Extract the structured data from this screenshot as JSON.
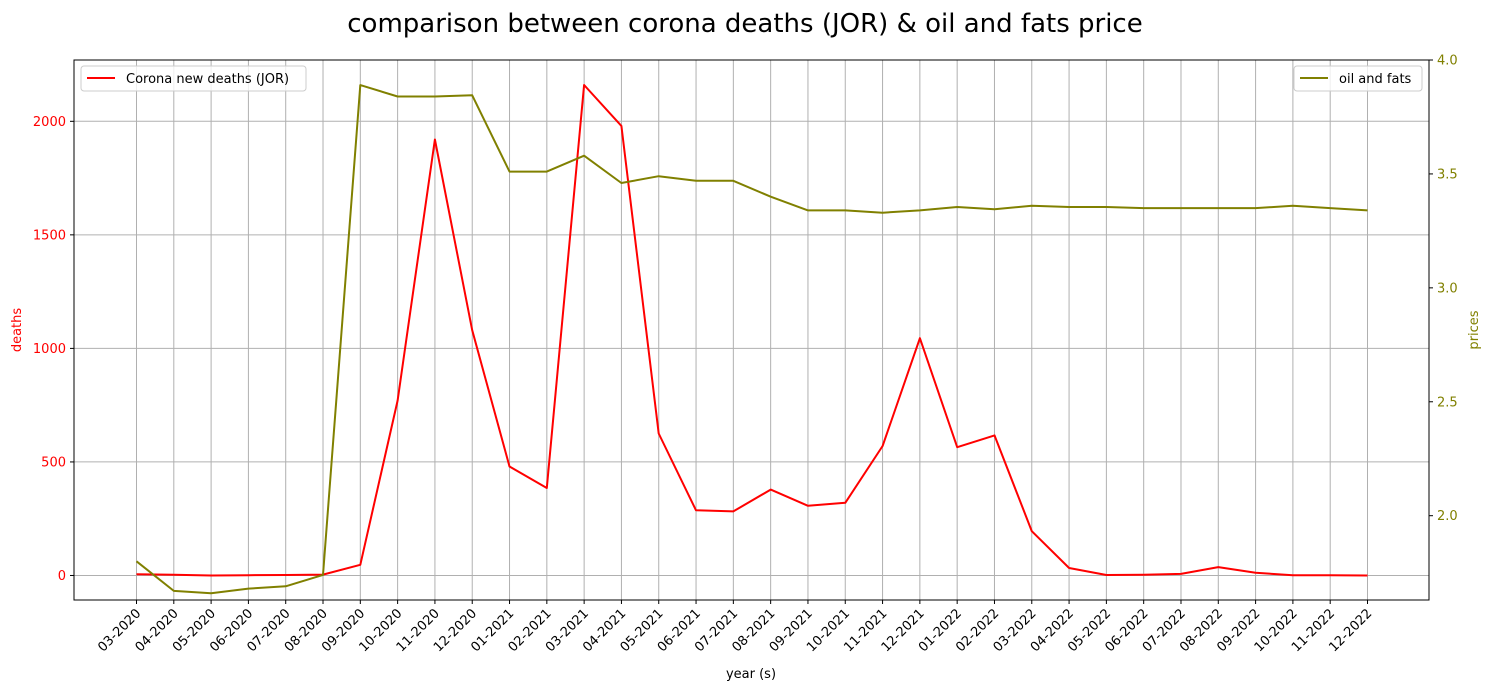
{
  "chart_data": {
    "type": "line",
    "title": "comparison between corona deaths (JOR) & oil and fats price",
    "xlabel": "year (s)",
    "categories": [
      "03-2020",
      "04-2020",
      "05-2020",
      "06-2020",
      "07-2020",
      "08-2020",
      "09-2020",
      "10-2020",
      "11-2020",
      "12-2020",
      "01-2021",
      "02-2021",
      "03-2021",
      "04-2021",
      "05-2021",
      "06-2021",
      "07-2021",
      "08-2021",
      "09-2021",
      "10-2021",
      "11-2021",
      "12-2021",
      "01-2022",
      "02-2022",
      "03-2022",
      "04-2022",
      "05-2022",
      "06-2022",
      "07-2022",
      "08-2022",
      "09-2022",
      "10-2022",
      "11-2022",
      "12-2022"
    ],
    "left_axis": {
      "label": "deaths",
      "color": "#ff0000",
      "ylim": [
        -108,
        2270
      ],
      "ticks": [
        0,
        500,
        1000,
        1500,
        2000
      ]
    },
    "right_axis": {
      "label": "prices",
      "color": "#808000",
      "ylim": [
        1.63,
        4.0
      ],
      "ticks": [
        2.0,
        2.5,
        3.0,
        3.5,
        4.0
      ]
    },
    "series": [
      {
        "name": "Corona new deaths (JOR)",
        "axis": "left",
        "color": "#ff0000",
        "legend_position": "upper-left",
        "values": [
          5,
          3,
          0,
          1,
          2,
          4,
          47,
          770,
          1920,
          1080,
          480,
          385,
          2160,
          1980,
          625,
          287,
          282,
          378,
          307,
          320,
          570,
          1045,
          565,
          617,
          195,
          33,
          2,
          3,
          7,
          37,
          12,
          1,
          1,
          0
        ]
      },
      {
        "name": "oil and fats",
        "axis": "right",
        "color": "#808000",
        "legend_position": "upper-right",
        "values": [
          1.8,
          1.67,
          1.66,
          1.68,
          1.69,
          1.74,
          3.89,
          3.84,
          3.84,
          3.845,
          3.51,
          3.51,
          3.58,
          3.46,
          3.49,
          3.47,
          3.47,
          3.4,
          3.34,
          3.34,
          3.33,
          3.34,
          3.355,
          3.345,
          3.36,
          3.355,
          3.355,
          3.35,
          3.35,
          3.35,
          3.35,
          3.36,
          3.35,
          3.34
        ]
      }
    ],
    "grid": true
  }
}
